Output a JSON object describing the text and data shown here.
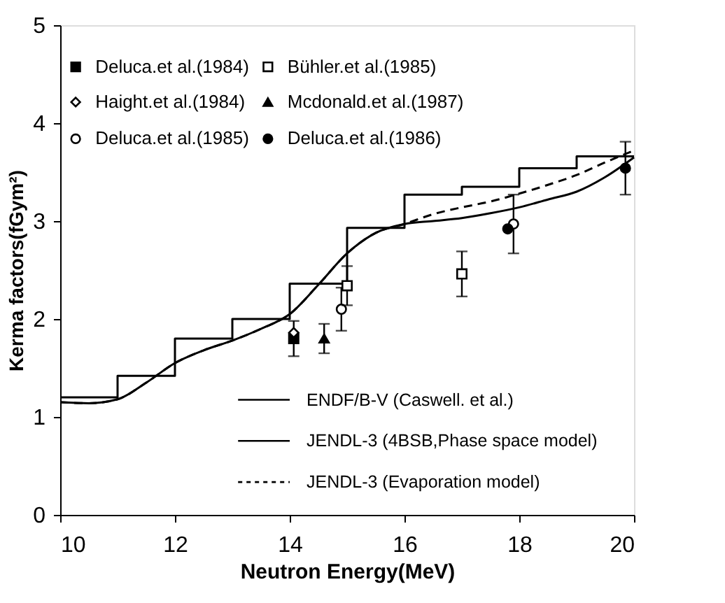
{
  "chart_data": {
    "type": "scatter",
    "xlabel": "Neutron  Energy(MeV)",
    "ylabel": "Kerma factors(fGym²)",
    "xlim": [
      10,
      20
    ],
    "ylim": [
      0,
      5
    ],
    "xticks": [
      10,
      12,
      14,
      16,
      18,
      20
    ],
    "yticks": [
      0,
      1,
      2,
      3,
      4,
      5
    ],
    "grid": false,
    "legend": "left",
    "series": [
      {
        "name": "Deluca.et al.(1984)",
        "marker": "square",
        "color": "#000000",
        "x": [
          14.07
        ],
        "values": [
          1.8
        ],
        "errors": [
          0.18
        ]
      },
      {
        "name": "Haight.et al.(1984)",
        "marker": "diamond",
        "color": "#ffffff",
        "x": [
          14.07
        ],
        "values": [
          1.86
        ],
        "errors": [
          null
        ]
      },
      {
        "name": "Deluca.et al.(1985)",
        "marker": "circle",
        "color": "#ffffff",
        "x": [
          14.9,
          17.9
        ],
        "values": [
          2.1,
          2.97
        ],
        "errors": [
          0.22,
          0.3
        ]
      },
      {
        "name": "Bühler.et al.(1985)",
        "marker": "square",
        "color": "#ffffff",
        "x": [
          15.0,
          17.0
        ],
        "values": [
          2.34,
          2.46
        ],
        "errors": [
          0.2,
          0.23
        ]
      },
      {
        "name": "Mcdonald.et al.(1987)",
        "marker": "triangle",
        "color": "#000000",
        "x": [
          14.6
        ],
        "values": [
          1.8
        ],
        "errors": [
          0.15
        ]
      },
      {
        "name": "Deluca.et al.(1986)",
        "marker": "circle",
        "color": "#000000",
        "x": [
          17.8,
          19.85
        ],
        "values": [
          2.92,
          3.54
        ],
        "errors": [
          null,
          0.27
        ]
      },
      {
        "name": "ENDF/B-V (Caswell. et al.)",
        "type": "step",
        "line_style": "solid",
        "color": "#000000",
        "x": [
          10,
          11,
          12,
          13,
          14,
          15,
          16,
          17,
          18,
          19,
          20
        ],
        "values": [
          1.2,
          1.42,
          1.8,
          2.0,
          2.36,
          2.93,
          3.27,
          3.35,
          3.54,
          3.66,
          3.66
        ]
      },
      {
        "name": "JENDL-3 (4BSB,Phase space model)",
        "type": "line",
        "line_style": "solid",
        "color": "#000000",
        "x": [
          10,
          10.5,
          11,
          11.5,
          12,
          12.5,
          13,
          13.5,
          14,
          14.5,
          15,
          15.5,
          16,
          16.5,
          17,
          17.5,
          18,
          18.5,
          19,
          19.5,
          20
        ],
        "values": [
          1.15,
          1.14,
          1.18,
          1.35,
          1.55,
          1.68,
          1.78,
          1.9,
          2.05,
          2.35,
          2.67,
          2.88,
          2.97,
          3.0,
          3.03,
          3.08,
          3.14,
          3.22,
          3.3,
          3.45,
          3.65
        ]
      },
      {
        "name": "JENDL-3 (Evaporation model)",
        "type": "line",
        "line_style": "dashed",
        "color": "#000000",
        "x": [
          10,
          10.5,
          11,
          11.5,
          12,
          12.5,
          13,
          13.5,
          14,
          14.5,
          15,
          15.5,
          16,
          16.5,
          17,
          17.5,
          18,
          18.5,
          19,
          19.5,
          20
        ],
        "values": [
          1.15,
          1.14,
          1.18,
          1.35,
          1.55,
          1.68,
          1.78,
          1.9,
          2.05,
          2.35,
          2.67,
          2.88,
          2.97,
          3.07,
          3.14,
          3.2,
          3.28,
          3.37,
          3.47,
          3.6,
          3.72
        ]
      }
    ]
  }
}
